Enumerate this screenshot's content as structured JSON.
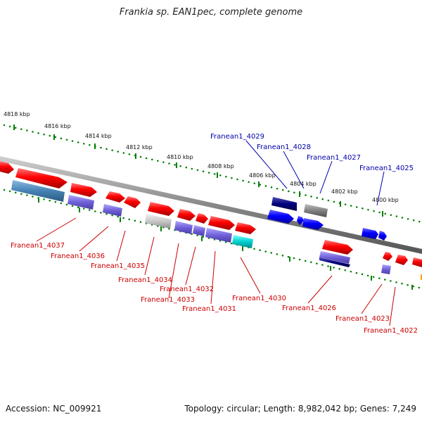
{
  "title": "Frankia sp. EAN1pec, complete genome",
  "footer": {
    "accession": "Accession: NC_009921",
    "summary": "Topology: circular; Length: 8,982,042 bp; Genes: 7,249"
  },
  "colors": {
    "forward_gene": "#ff0000",
    "reverse_gene": "#ff0000",
    "blue_gene": "#0000ff",
    "purple_gene": "#6a5acd",
    "dark_gene": "#000080",
    "gray_gene": "#808080",
    "cyan_gene": "#00c8c8",
    "steel_gene": "#4682b4",
    "tick_green": "#008000",
    "label_blue": "#0000aa",
    "label_red": "#cc0000",
    "backbone": "#888888"
  },
  "scale_labels": [
    "4818 kbp",
    "4816 kbp",
    "4814 kbp",
    "4812 kbp",
    "4810 kbp",
    "4808 kbp",
    "4806 kbp",
    "4804 kbp",
    "4802 kbp",
    "4800 kbp"
  ],
  "upper_labels": [
    "Franean1_4029",
    "Franean1_4028",
    "Franean1_4027",
    "Franean1_4025"
  ],
  "lower_labels": [
    "Franean1_4037",
    "Franean1_4036",
    "Franean1_4035",
    "Franean1_4034",
    "Franean1_4032",
    "Franean1_4033",
    "Franean1_4031",
    "Franean1_4030",
    "Franean1_4026",
    "Franean1_4023",
    "Franean1_4022"
  ]
}
